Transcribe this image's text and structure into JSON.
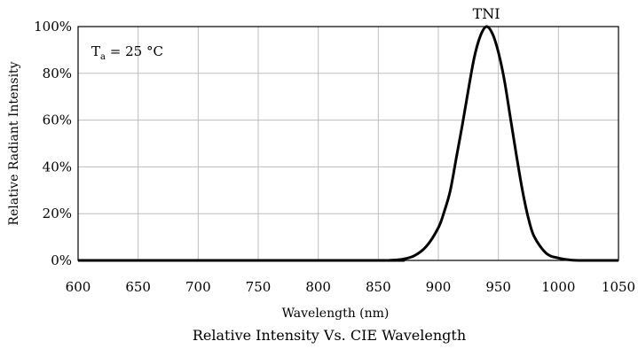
{
  "chart_data": {
    "type": "line",
    "title": "Relative Intensity Vs. CIE Wavelength",
    "xlabel": "Wavelength (nm)",
    "ylabel": "Relative Radiant Intensity",
    "xlim": [
      600,
      1050
    ],
    "ylim": [
      0,
      100
    ],
    "x_ticks": [
      600,
      650,
      700,
      750,
      800,
      850,
      900,
      950,
      1000,
      1050
    ],
    "x_tick_labels": [
      "600",
      "650",
      "700",
      "750",
      "800",
      "850",
      "900",
      "950",
      "1000",
      "1050"
    ],
    "y_ticks": [
      0,
      20,
      40,
      60,
      80,
      100
    ],
    "y_tick_labels": [
      "0%",
      "20%",
      "40%",
      "60%",
      "80%",
      "100%"
    ],
    "grid": true,
    "annotation": {
      "main": "T",
      "subscript": "a",
      "rest": " = 25 °C"
    },
    "series": [
      {
        "name": "TNI",
        "color": "#000000",
        "x": [
          600,
          850,
          860,
          870,
          880,
          890,
          900,
          905,
          910,
          915,
          920,
          925,
          930,
          935,
          940,
          945,
          950,
          955,
          960,
          965,
          970,
          975,
          980,
          990,
          1000,
          1010,
          1020,
          1050
        ],
        "y": [
          0,
          0,
          0.1,
          0.5,
          2,
          6,
          14,
          21,
          30,
          44,
          58,
          73,
          87,
          96,
          100,
          97,
          89,
          77,
          61,
          45,
          30,
          18,
          10,
          3,
          1,
          0.2,
          0,
          0
        ]
      }
    ]
  }
}
